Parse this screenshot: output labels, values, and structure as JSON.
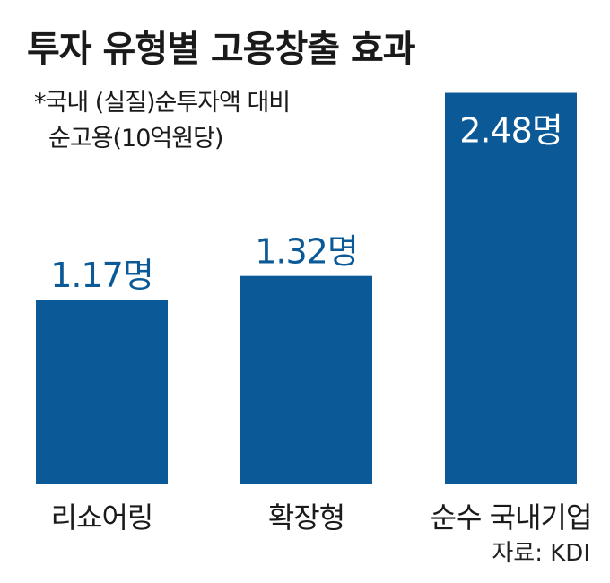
{
  "chart_data": {
    "type": "bar",
    "title": "투자 유형별 고용창출 효과",
    "subtitle_lines": [
      "*국내 (실질)순투자액 대비",
      "순고용(10억원당)"
    ],
    "categories": [
      "리쇼어링",
      "확장형",
      "순수 국내기업"
    ],
    "values": [
      1.17,
      1.32,
      2.48
    ],
    "value_labels": [
      "1.17명",
      "1.32명",
      "2.48명"
    ],
    "unit": "명",
    "xlabel": "",
    "ylabel": "",
    "ylim": [
      0,
      2.48
    ],
    "grid": false,
    "source": "자료: KDI",
    "colors": {
      "bar": "#0b5a97",
      "label": "#0b5a97",
      "inside_label": "#ffffff"
    }
  }
}
